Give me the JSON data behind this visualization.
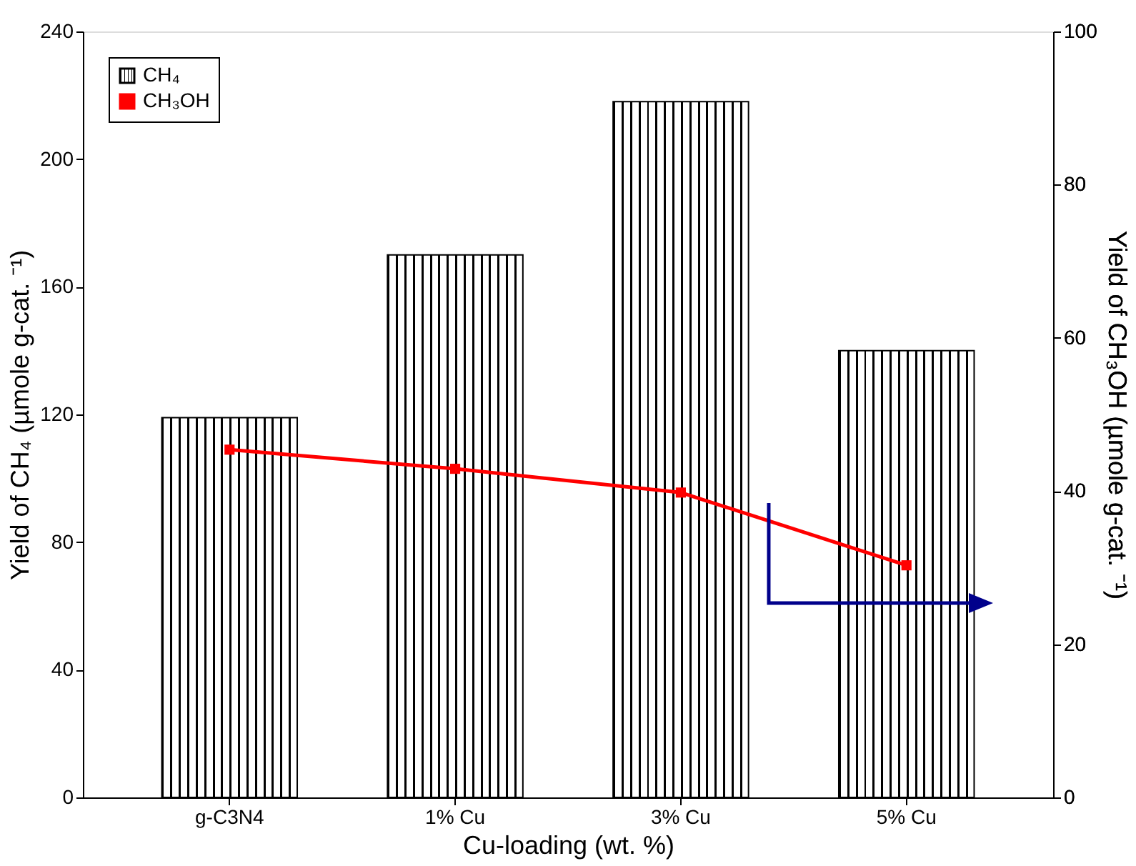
{
  "chart_data": {
    "type": "bar",
    "categories": [
      "g-C3N4",
      "1% Cu",
      "3% Cu",
      "5% Cu"
    ],
    "xlabel": "Cu-loading (wt. %)",
    "ylabel": "Yield of CH₄ (µmole g-cat. ⁻¹)",
    "y2label": "Yield of CH₃OH (µmole g-cat. ⁻¹)",
    "series": [
      {
        "name": "CH₄",
        "color": "#000000",
        "values": [
          119,
          170,
          218,
          140
        ]
      },
      {
        "name": "CH₃OH",
        "type": "line",
        "axis": "y2",
        "color": "#ff0000",
        "values": [
          45.4,
          42.9,
          39.8,
          30.3
        ]
      }
    ],
    "ylim": [
      0,
      240
    ],
    "yticks": [
      0,
      40,
      80,
      120,
      160,
      200,
      240
    ],
    "y2lim": [
      0,
      100
    ],
    "y2ticks": [
      0,
      20,
      40,
      60,
      80,
      100
    ],
    "marker": "square",
    "legend": "top left",
    "grid": false
  }
}
